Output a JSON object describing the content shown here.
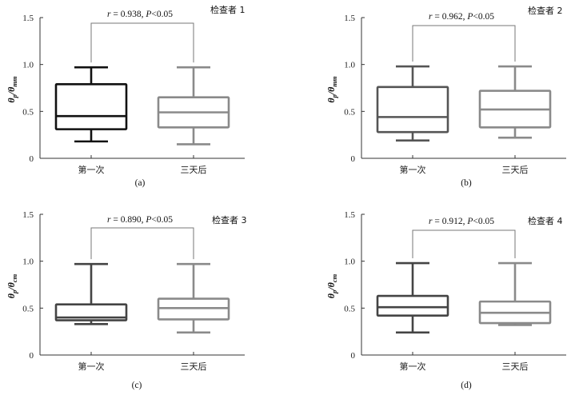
{
  "chart_data": [
    {
      "type": "box",
      "panel_label": "(a)",
      "examiner": "检查者 1",
      "ylabel": "θp/θmm",
      "ylabel_main": "θ",
      "ylabel_sub1": "p",
      "ylabel_den": "/θ",
      "ylabel_sub2": "mm",
      "ylim": [
        0,
        1.5
      ],
      "yticks": [
        0,
        0.5,
        1.0,
        1.5
      ],
      "ytick_labels": [
        "0",
        "0.5",
        "1.0",
        "1.5"
      ],
      "categories": [
        "第一次",
        "三天后"
      ],
      "annotation": "r = 0.938, P<0.05",
      "ann_r": "r",
      "ann_r_val": " = 0.938, ",
      "ann_p": "P",
      "ann_p_val": "<0.05",
      "boxes": [
        {
          "category": "第一次",
          "min": 0.18,
          "q1": 0.31,
          "median": 0.45,
          "q3": 0.79,
          "max": 0.97,
          "color": "#111111"
        },
        {
          "category": "三天后",
          "min": 0.15,
          "q1": 0.33,
          "median": 0.49,
          "q3": 0.65,
          "max": 0.97,
          "color": "#8a8a8a"
        }
      ]
    },
    {
      "type": "box",
      "panel_label": "(b)",
      "examiner": "检查者 2",
      "ylabel": "θp/θmm",
      "ylabel_main": "θ",
      "ylabel_sub1": "p",
      "ylabel_den": "/θ",
      "ylabel_sub2": "mm",
      "ylim": [
        0,
        1.5
      ],
      "yticks": [
        0,
        0.5,
        1.0,
        1.5
      ],
      "ytick_labels": [
        "0",
        "0.5",
        "1.0",
        "1.5"
      ],
      "categories": [
        "第一次",
        "三天后"
      ],
      "annotation": "r = 0.962, P<0.05",
      "ann_r": "r",
      "ann_r_val": " = 0.962, ",
      "ann_p": "P",
      "ann_p_val": "<0.05",
      "boxes": [
        {
          "category": "第一次",
          "min": 0.19,
          "q1": 0.28,
          "median": 0.44,
          "q3": 0.76,
          "max": 0.98,
          "color": "#555555"
        },
        {
          "category": "三天后",
          "min": 0.22,
          "q1": 0.33,
          "median": 0.52,
          "q3": 0.72,
          "max": 0.98,
          "color": "#8a8a8a"
        }
      ]
    },
    {
      "type": "box",
      "panel_label": "(c)",
      "examiner": "检查者 3",
      "ylabel": "θp/θcm",
      "ylabel_main": "θ",
      "ylabel_sub1": "p",
      "ylabel_den": "/θ",
      "ylabel_sub2": "cm",
      "ylim": [
        0,
        1.5
      ],
      "yticks": [
        0,
        0.5,
        1.0,
        1.5
      ],
      "ytick_labels": [
        "0",
        "0.5",
        "1.0",
        "1.5"
      ],
      "categories": [
        "第一次",
        "三天后"
      ],
      "annotation": "r = 0.890, P<0.05",
      "ann_r": "r",
      "ann_r_val": " = 0.890, ",
      "ann_p": "P",
      "ann_p_val": "<0.05",
      "boxes": [
        {
          "category": "第一次",
          "min": 0.33,
          "q1": 0.37,
          "median": 0.4,
          "q3": 0.54,
          "max": 0.97,
          "color": "#444444"
        },
        {
          "category": "三天后",
          "min": 0.24,
          "q1": 0.38,
          "median": 0.5,
          "q3": 0.6,
          "max": 0.97,
          "color": "#8a8a8a"
        }
      ]
    },
    {
      "type": "box",
      "panel_label": "(d)",
      "examiner": "检查者 4",
      "ylabel": "θp/θcm",
      "ylabel_main": "θ",
      "ylabel_sub1": "p",
      "ylabel_den": "/θ",
      "ylabel_sub2": "cm",
      "ylim": [
        0,
        1.5
      ],
      "yticks": [
        0,
        0.5,
        1.0,
        1.5
      ],
      "ytick_labels": [
        "0",
        "0.5",
        "1.0",
        "1.5"
      ],
      "categories": [
        "第一次",
        "三天后"
      ],
      "annotation": "r = 0.912, P<0.05",
      "ann_r": "r",
      "ann_r_val": " = 0.912, ",
      "ann_p": "P",
      "ann_p_val": "<0.05",
      "boxes": [
        {
          "category": "第一次",
          "min": 0.24,
          "q1": 0.42,
          "median": 0.51,
          "q3": 0.63,
          "max": 0.98,
          "color": "#444444"
        },
        {
          "category": "三天后",
          "min": 0.32,
          "q1": 0.34,
          "median": 0.45,
          "q3": 0.57,
          "max": 0.98,
          "color": "#8a8a8a"
        }
      ]
    }
  ]
}
